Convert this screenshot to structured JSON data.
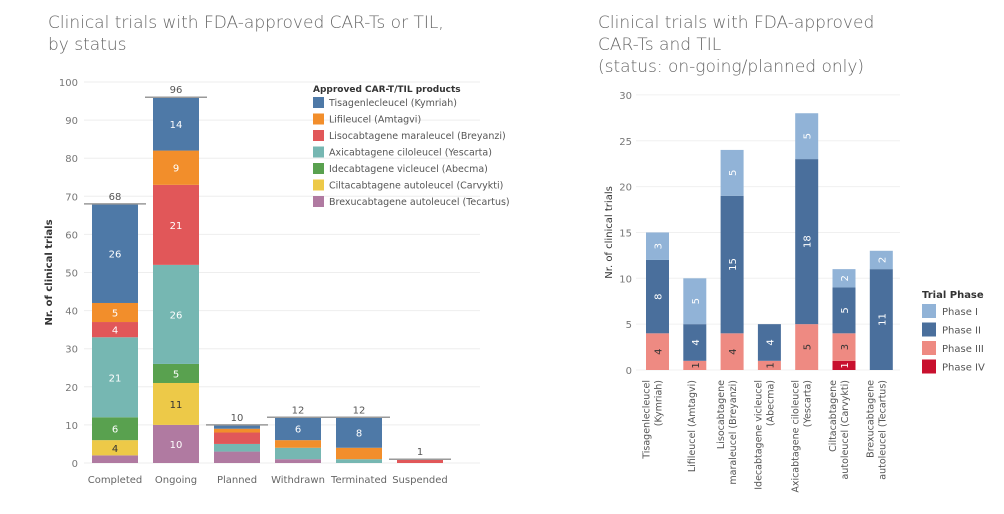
{
  "chart_data": [
    {
      "type": "bar",
      "stacked": true,
      "title": "Clinical trials with FDA-approved CAR-Ts or TIL, by status",
      "ylabel": "Nr. of clinical trials",
      "xlabel": "",
      "ylim": [
        0,
        100
      ],
      "yticks": [
        0,
        10,
        20,
        30,
        40,
        50,
        60,
        70,
        80,
        90,
        100
      ],
      "grid": true,
      "legend_title": "Approved CAR-T/TIL products",
      "legend_position": "top-right",
      "categories": [
        "Completed",
        "Ongoing",
        "Planned",
        "Withdrawn",
        "Terminated",
        "Suspended"
      ],
      "totals": [
        68,
        96,
        10,
        12,
        12,
        1
      ],
      "series": [
        {
          "name": "Brexucabtagene autoleucel (Tecartus)",
          "color": "#b07aa1",
          "values": [
            2,
            10,
            3,
            1,
            0,
            0
          ]
        },
        {
          "name": "Ciltacabtagene autoleucel (Carvykti)",
          "color": "#edc948",
          "values": [
            4,
            11,
            0,
            0,
            0,
            0
          ]
        },
        {
          "name": "Idecabtagene vicleucel (Abecma)",
          "color": "#59a14f",
          "values": [
            6,
            5,
            0,
            0,
            0,
            0
          ]
        },
        {
          "name": "Axicabtagene ciloleucel (Yescarta)",
          "color": "#76b7b2",
          "values": [
            21,
            26,
            2,
            3,
            1,
            0
          ]
        },
        {
          "name": "Lisocabtagene maraleucel (Breyanzi)",
          "color": "#e15759",
          "values": [
            4,
            21,
            3,
            0,
            0,
            1
          ]
        },
        {
          "name": "Lifileucel (Amtagvi)",
          "color": "#f28e2b",
          "values": [
            5,
            9,
            1,
            2,
            3,
            0
          ]
        },
        {
          "name": "Tisagenlecleucel (Kymriah)",
          "color": "#4e79a7",
          "values": [
            26,
            14,
            1,
            6,
            8,
            0
          ]
        }
      ]
    },
    {
      "type": "bar",
      "stacked": true,
      "title": "Clinical trials with FDA-approved CAR-Ts and TIL (status: on-going/planned only)",
      "title_lines": [
        "Clinical trials with FDA-approved",
        "CAR-Ts and TIL",
        "(status: on-going/planned only)"
      ],
      "ylabel": "Nr. of clinical trials",
      "ylim": [
        0,
        30
      ],
      "yticks": [
        0,
        5,
        10,
        15,
        20,
        25,
        30
      ],
      "grid": true,
      "legend_title": "Trial Phase",
      "legend_position": "right",
      "categories": [
        [
          "Tisagenlecleucel",
          "(Kymriah)"
        ],
        [
          "Lifileucel (Amtagvi)"
        ],
        [
          "Lisocabtagene",
          "maraleucel (Breyanzi)"
        ],
        [
          "Idecabtagene vicleucel",
          "(Abecma)"
        ],
        [
          "Axicabtagene ciloleucel",
          "(Yescarta)"
        ],
        [
          "Ciltacabtagene",
          "autoleucel (Carvykti)"
        ],
        [
          "Brexucabtagene",
          "autoleucel (Tecartus)"
        ]
      ],
      "series": [
        {
          "name": "Phase IV",
          "color": "#c8102e",
          "values": [
            0,
            0,
            0,
            0,
            0,
            1,
            0
          ]
        },
        {
          "name": "Phase III",
          "color": "#ee8a82",
          "values": [
            4,
            1,
            4,
            1,
            5,
            3,
            0
          ]
        },
        {
          "name": "Phase II",
          "color": "#4a6f9c",
          "values": [
            8,
            4,
            15,
            4,
            18,
            5,
            11
          ]
        },
        {
          "name": "Phase I",
          "color": "#91b3d7",
          "values": [
            3,
            5,
            5,
            0,
            5,
            2,
            2
          ]
        }
      ],
      "legend_order": [
        "Phase I",
        "Phase II",
        "Phase III",
        "Phase IV"
      ]
    }
  ]
}
